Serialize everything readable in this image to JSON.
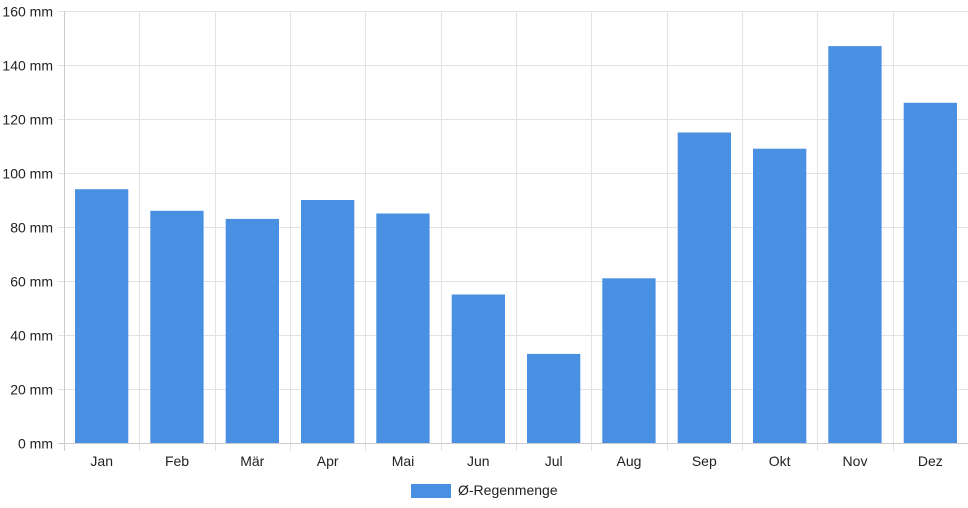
{
  "chart_data": {
    "type": "bar",
    "categories": [
      "Jan",
      "Feb",
      "Mär",
      "Apr",
      "Mai",
      "Jun",
      "Jul",
      "Aug",
      "Sep",
      "Okt",
      "Nov",
      "Dez"
    ],
    "series": [
      {
        "name": "Ø-Regenmenge",
        "values": [
          94,
          86,
          83,
          90,
          85,
          55,
          33,
          61,
          115,
          109,
          147,
          126
        ],
        "color": "#4a90e2"
      }
    ],
    "y_unit": "mm",
    "ylim": [
      0,
      160
    ],
    "y_ticks": [
      0,
      20,
      40,
      60,
      80,
      100,
      120,
      140,
      160
    ],
    "y_tick_labels": [
      "0 mm",
      "20 mm",
      "40 mm",
      "60 mm",
      "80 mm",
      "100 mm",
      "120 mm",
      "140 mm",
      "160 mm"
    ],
    "grid": true,
    "legend_position": "bottom"
  }
}
